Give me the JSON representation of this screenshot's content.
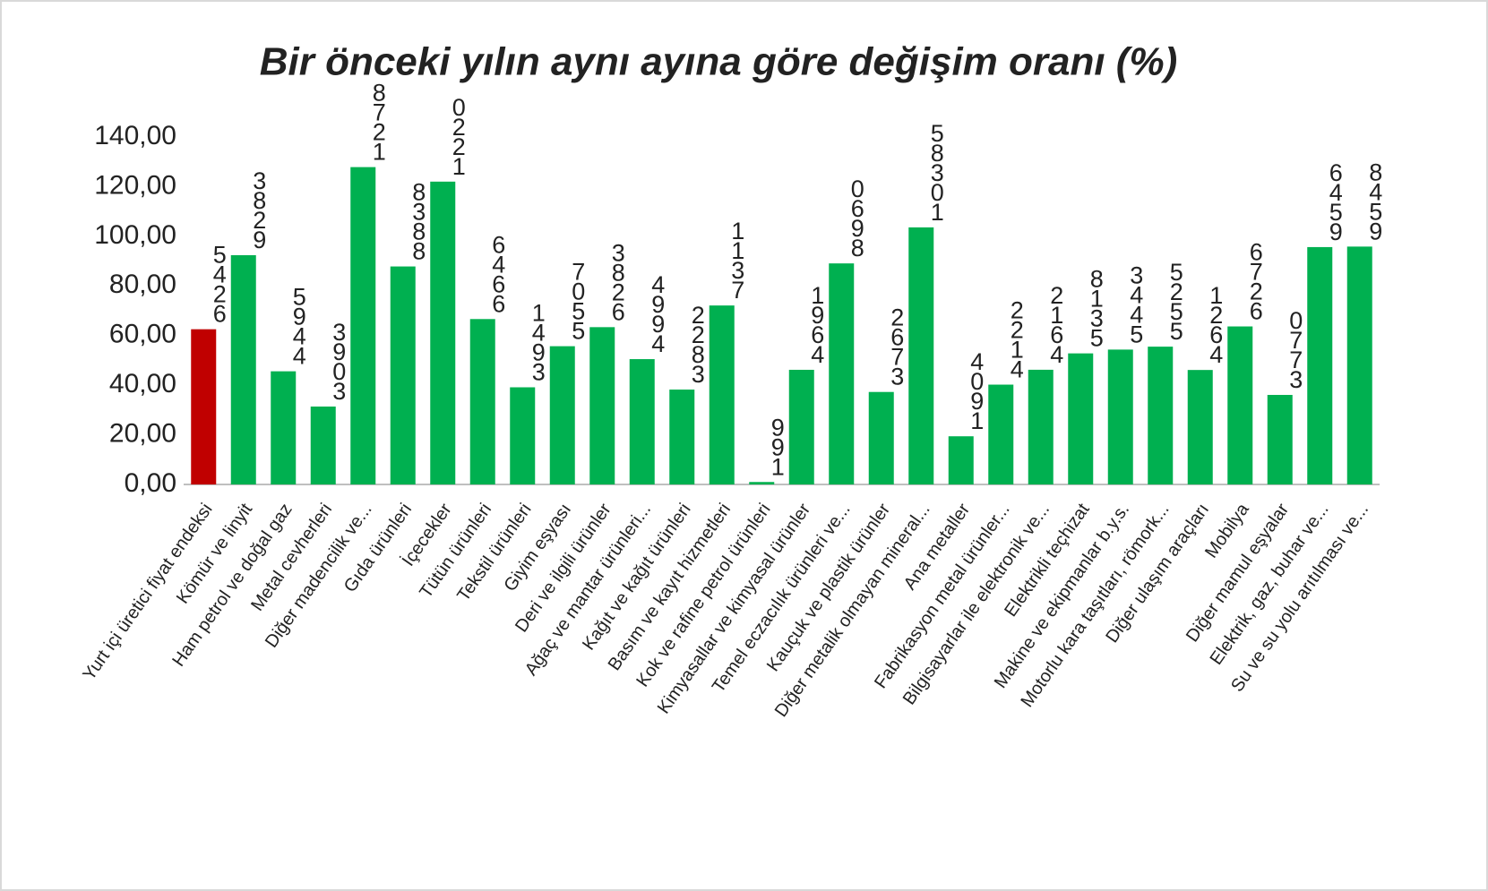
{
  "chart_data": {
    "type": "bar",
    "title": "Bir önceki yılın aynı ayına göre değişim oranı (%)",
    "categories": [
      "Yurt içi üretici fiyat endeksi",
      "Kömür ve linyit",
      "Ham petrol ve doğal gaz",
      "Metal cevherleri",
      "Diğer madencilik ve...",
      "Gıda ürünleri",
      "İçecekler",
      "Tütün ürünleri",
      "Tekstil ürünleri",
      "Giyim eşyası",
      "Deri ve ilgili ürünler",
      "Ağaç ve mantar ürünleri...",
      "Kağıt ve kağıt ürünleri",
      "Basım ve kayıt hizmetleri",
      "Kok ve rafine petrol ürünleri",
      "Kimyasallar ve kimyasal ürünler",
      "Temel eczacılık ürünleri ve...",
      "Kauçuk ve plastik ürünler",
      "Diğer metalik olmayan mineral...",
      "Ana metaller",
      "Fabrikasyon metal ürünler...",
      "Bilgisayarlar ile elektronik ve...",
      "Elektrikli teçhizat",
      "Makine ve ekipmanlar b.y.s.",
      "Motorlu kara taşıtları, römork...",
      "Diğer ulaşım araçları",
      "Mobilya",
      "Diğer mamul eşyalar",
      "Elektrik, gaz, buhar ve...",
      "Su ve su yolu arıtılması ve..."
    ],
    "values": [
      62.5426,
      92.3829,
      45.5944,
      31.3903,
      127.8721,
      87.8388,
      122.0221,
      66.6466,
      39.1493,
      55.7055,
      63.3826,
      50.4994,
      38.2283,
      72.1137,
      0.991,
      46.1964,
      89.0698,
      37.2673,
      103.58301,
      19.4091,
      40.2214,
      46.2164,
      52.8135,
      54.3445,
      55.5255,
      46.1264,
      63.6726,
      36.0773,
      95.6459,
      95.8459
    ],
    "value_labels": [
      "5426",
      "3829",
      "5944",
      "3903",
      "8721",
      "8388",
      "0221",
      "6466",
      "1493",
      "7055",
      "3826",
      "4994",
      "2283",
      "1137",
      "991",
      "1964",
      "0698",
      "2673",
      "58301",
      "4091",
      "2214",
      "2164",
      "8135",
      "3445",
      "5255",
      "1264",
      "6726",
      "0773",
      "6459",
      "8459"
    ],
    "colors": [
      "#c00000",
      "#00b050",
      "#00b050",
      "#00b050",
      "#00b050",
      "#00b050",
      "#00b050",
      "#00b050",
      "#00b050",
      "#00b050",
      "#00b050",
      "#00b050",
      "#00b050",
      "#00b050",
      "#00b050",
      "#00b050",
      "#00b050",
      "#00b050",
      "#00b050",
      "#00b050",
      "#00b050",
      "#00b050",
      "#00b050",
      "#00b050",
      "#00b050",
      "#00b050",
      "#00b050",
      "#00b050",
      "#00b050",
      "#00b050"
    ],
    "ylim": [
      0,
      140
    ],
    "yticks": [
      {
        "value": 0,
        "label": "0,00"
      },
      {
        "value": 20,
        "label": "20,00"
      },
      {
        "value": 40,
        "label": "40,00"
      },
      {
        "value": 60,
        "label": "60,00"
      },
      {
        "value": 80,
        "label": "80,00"
      },
      {
        "value": 100,
        "label": "100,00"
      },
      {
        "value": 120,
        "label": "120,00"
      },
      {
        "value": 140,
        "label": "140,00"
      }
    ],
    "grid": false
  }
}
